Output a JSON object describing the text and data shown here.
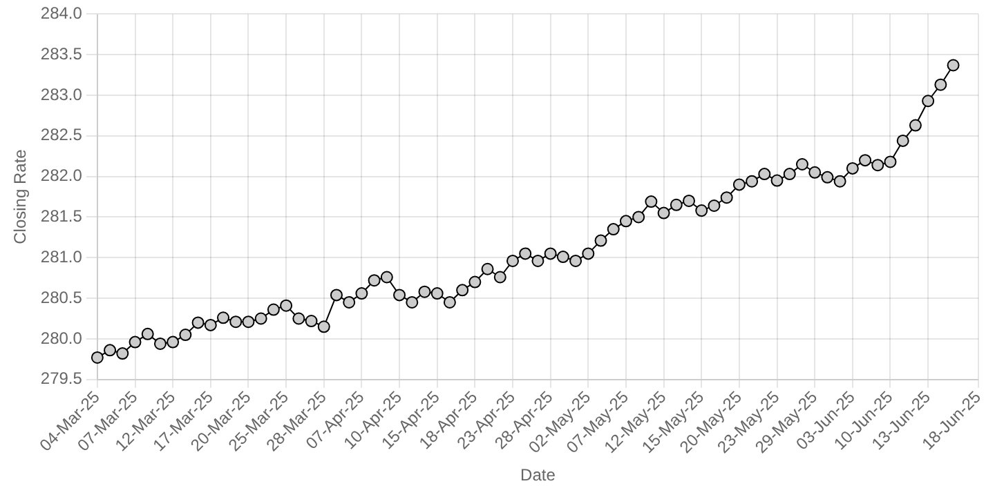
{
  "chart_data": {
    "type": "line",
    "xlabel": "Date",
    "ylabel": "Closing Rate",
    "categories": [
      "04-Mar-25",
      null,
      null,
      "07-Mar-25",
      null,
      null,
      "12-Mar-25",
      null,
      null,
      "17-Mar-25",
      null,
      null,
      "20-Mar-25",
      null,
      null,
      "25-Mar-25",
      null,
      null,
      "28-Mar-25",
      null,
      null,
      "07-Apr-25",
      null,
      null,
      "10-Apr-25",
      null,
      null,
      "15-Apr-25",
      null,
      null,
      "18-Apr-25",
      null,
      null,
      "23-Apr-25",
      null,
      null,
      "28-Apr-25",
      null,
      null,
      "02-May-25",
      null,
      null,
      "07-May-25",
      null,
      null,
      "12-May-25",
      null,
      null,
      "15-May-25",
      null,
      null,
      "20-May-25",
      null,
      null,
      "23-May-25",
      null,
      null,
      "29-May-25",
      null,
      null,
      "03-Jun-25",
      null,
      null,
      "10-Jun-25",
      null,
      null,
      "13-Jun-25",
      null,
      null,
      null,
      "18-Jun-25"
    ],
    "series": [
      {
        "color": "#000000",
        "values": [
          279.77,
          279.86,
          279.82,
          279.96,
          280.06,
          279.94,
          279.96,
          280.05,
          280.2,
          280.17,
          280.26,
          280.21,
          280.21,
          280.25,
          280.36,
          280.41,
          280.25,
          280.22,
          280.15,
          280.54,
          280.45,
          280.56,
          280.72,
          280.76,
          280.54,
          280.45,
          280.58,
          280.56,
          280.45,
          280.6,
          280.7,
          280.86,
          280.76,
          280.96,
          281.05,
          280.96,
          281.05,
          281.01,
          280.96,
          281.05,
          281.21,
          281.35,
          281.45,
          281.5,
          281.69,
          281.55,
          281.65,
          281.7,
          281.58,
          281.64,
          281.74,
          281.9,
          281.94,
          282.03,
          281.95,
          282.03,
          282.15,
          282.05,
          281.99,
          281.94,
          282.1,
          282.2,
          282.14,
          282.18,
          282.44,
          282.63,
          282.93,
          283.13,
          283.37,
          null,
          null
        ]
      }
    ],
    "ylim": [
      279.5,
      284
    ],
    "yticks": [
      279.5,
      {
        "value": 280,
        "label": "280.0"
      },
      280.5,
      {
        "value": 281,
        "label": "281.0"
      },
      281.5,
      {
        "value": 282,
        "label": "282.0"
      },
      282.5,
      {
        "value": 283,
        "label": "283.0"
      },
      283.5,
      {
        "value": 284,
        "label": "284.0"
      }
    ],
    "grid": true,
    "marker": "circle",
    "line_style": "solid",
    "legend": false
  }
}
